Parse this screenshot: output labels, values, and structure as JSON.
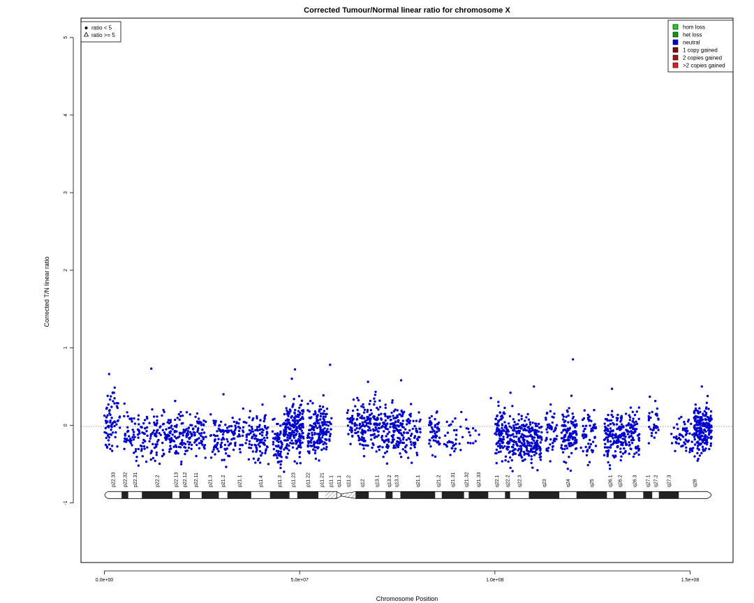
{
  "chart_data": {
    "type": "scatter",
    "title": "Corrected Tumour/Normal linear ratio for chromosome  X",
    "xlabel": "Chromosome Position",
    "ylabel": "Corrected T/N linear ratio",
    "xlim": [
      -6000000,
      161000000
    ],
    "ylim": [
      -1.77,
      5.25
    ],
    "x_ticks": [
      0,
      50000000,
      100000000,
      150000000
    ],
    "x_tick_labels": [
      "0.0e+00",
      "5.0e+07",
      "1.0e+08",
      "1.5e+08"
    ],
    "y_ticks": [
      -1,
      0,
      1,
      2,
      3,
      4,
      5
    ],
    "y_tick_labels": [
      "-1",
      "0",
      "1",
      "2",
      "3",
      "4",
      "5"
    ],
    "reference_line_y": 0,
    "point_color": "#0000cc",
    "shape_legend": {
      "position": "top-left",
      "entries": [
        {
          "symbol": "dot",
          "label": "ratio < 5"
        },
        {
          "symbol": "triangle",
          "label": "ratio >= 5"
        }
      ]
    },
    "state_legend": {
      "position": "top-right",
      "entries": [
        {
          "label": "hom loss",
          "color": "#22cc22"
        },
        {
          "label": "het loss",
          "color": "#119911"
        },
        {
          "label": "neutral",
          "color": "#0000cc"
        },
        {
          "label": "1 copy gained",
          "color": "#771111"
        },
        {
          "label": "2 copies gained",
          "color": "#aa1111"
        },
        {
          "label": ">2 copies gained",
          "color": "#dd2222"
        }
      ]
    },
    "series": [
      {
        "marker": "dot",
        "segments": [
          {
            "start": 0,
            "end": 4000000,
            "y_center": 0.05,
            "spread": 0.17,
            "n": 70
          },
          {
            "start": 5000000,
            "end": 11000000,
            "y_center": -0.12,
            "spread": 0.15,
            "n": 80
          },
          {
            "start": 11500000,
            "end": 22000000,
            "y_center": -0.12,
            "spread": 0.16,
            "n": 170
          },
          {
            "start": 22000000,
            "end": 26000000,
            "y_center": -0.12,
            "spread": 0.14,
            "n": 60
          },
          {
            "start": 27000000,
            "end": 32000000,
            "y_center": -0.17,
            "spread": 0.14,
            "n": 70
          },
          {
            "start": 32000000,
            "end": 38000000,
            "y_center": -0.1,
            "spread": 0.15,
            "n": 70
          },
          {
            "start": 38000000,
            "end": 42000000,
            "y_center": -0.2,
            "spread": 0.16,
            "n": 80
          },
          {
            "start": 43000000,
            "end": 46000000,
            "y_center": -0.22,
            "spread": 0.15,
            "n": 60
          },
          {
            "start": 46000000,
            "end": 51000000,
            "y_center": -0.05,
            "spread": 0.17,
            "n": 200
          },
          {
            "start": 52000000,
            "end": 57000000,
            "y_center": -0.05,
            "spread": 0.16,
            "n": 160
          },
          {
            "start": 57000000,
            "end": 58200000,
            "y_center": 0.0,
            "spread": 0.1,
            "n": 15
          },
          {
            "start": 62000000,
            "end": 65000000,
            "y_center": 0.02,
            "spread": 0.14,
            "n": 40
          },
          {
            "start": 65000000,
            "end": 72000000,
            "y_center": -0.02,
            "spread": 0.16,
            "n": 160
          },
          {
            "start": 72000000,
            "end": 77000000,
            "y_center": -0.08,
            "spread": 0.16,
            "n": 130
          },
          {
            "start": 77000000,
            "end": 81000000,
            "y_center": -0.1,
            "spread": 0.15,
            "n": 60
          },
          {
            "start": 83000000,
            "end": 86000000,
            "y_center": -0.12,
            "spread": 0.14,
            "n": 50
          },
          {
            "start": 87000000,
            "end": 90000000,
            "y_center": -0.15,
            "spread": 0.12,
            "n": 25
          },
          {
            "start": 90000000,
            "end": 96000000,
            "y_center": -0.12,
            "spread": 0.12,
            "n": 20
          },
          {
            "start": 100000000,
            "end": 103000000,
            "y_center": -0.1,
            "spread": 0.16,
            "n": 90
          },
          {
            "start": 103000000,
            "end": 107000000,
            "y_center": -0.18,
            "spread": 0.17,
            "n": 110
          },
          {
            "start": 107000000,
            "end": 112000000,
            "y_center": -0.18,
            "spread": 0.16,
            "n": 150
          },
          {
            "start": 113000000,
            "end": 116000000,
            "y_center": -0.12,
            "spread": 0.15,
            "n": 50
          },
          {
            "start": 117000000,
            "end": 121000000,
            "y_center": -0.1,
            "spread": 0.16,
            "n": 110
          },
          {
            "start": 122000000,
            "end": 126000000,
            "y_center": -0.1,
            "spread": 0.15,
            "n": 60
          },
          {
            "start": 128000000,
            "end": 133000000,
            "y_center": -0.15,
            "spread": 0.16,
            "n": 140
          },
          {
            "start": 133000000,
            "end": 137000000,
            "y_center": -0.1,
            "spread": 0.15,
            "n": 90
          },
          {
            "start": 139000000,
            "end": 142000000,
            "y_center": 0.0,
            "spread": 0.14,
            "n": 35
          },
          {
            "start": 145000000,
            "end": 151000000,
            "y_center": -0.15,
            "spread": 0.13,
            "n": 60
          },
          {
            "start": 151000000,
            "end": 155500000,
            "y_center": -0.05,
            "spread": 0.17,
            "n": 200
          }
        ],
        "outliers": [
          {
            "x": 1200000,
            "y": 0.66
          },
          {
            "x": 12000000,
            "y": 0.73
          },
          {
            "x": 48000000,
            "y": 0.6
          },
          {
            "x": 48800000,
            "y": 0.72
          },
          {
            "x": 57800000,
            "y": 0.78
          },
          {
            "x": 67500000,
            "y": 0.56
          },
          {
            "x": 76000000,
            "y": 0.58
          },
          {
            "x": 99000000,
            "y": 0.35
          },
          {
            "x": 104000000,
            "y": 0.42
          },
          {
            "x": 110000000,
            "y": 0.5
          },
          {
            "x": 120000000,
            "y": 0.85
          },
          {
            "x": 130000000,
            "y": 0.47
          },
          {
            "x": 42000000,
            "y": -0.5
          },
          {
            "x": 46000000,
            "y": -0.6
          },
          {
            "x": 104000000,
            "y": -0.55
          },
          {
            "x": 153000000,
            "y": 0.5
          },
          {
            "x": 30500000,
            "y": 0.4
          }
        ]
      }
    ],
    "ideogram": {
      "y": -0.9,
      "bands": [
        {
          "name": "p22.33",
          "start": 0,
          "end": 4400000,
          "stain": "gneg"
        },
        {
          "name": "p22.32",
          "start": 4400000,
          "end": 6100000,
          "stain": "gpos"
        },
        {
          "name": "p22.31",
          "start": 6100000,
          "end": 9600000,
          "stain": "gneg"
        },
        {
          "name": "p22.2",
          "start": 9600000,
          "end": 17400000,
          "stain": "gpos"
        },
        {
          "name": "p22.13",
          "start": 17400000,
          "end": 19200000,
          "stain": "gneg"
        },
        {
          "name": "p22.12",
          "start": 19200000,
          "end": 21900000,
          "stain": "gpos"
        },
        {
          "name": "p22.11",
          "start": 21900000,
          "end": 24900000,
          "stain": "gneg"
        },
        {
          "name": "p21.3",
          "start": 24900000,
          "end": 29300000,
          "stain": "gpos"
        },
        {
          "name": "p21.2",
          "start": 29300000,
          "end": 31500000,
          "stain": "gneg"
        },
        {
          "name": "p21.1",
          "start": 31500000,
          "end": 37600000,
          "stain": "gpos"
        },
        {
          "name": "p11.4",
          "start": 37600000,
          "end": 42400000,
          "stain": "gneg"
        },
        {
          "name": "p11.3",
          "start": 42400000,
          "end": 47400000,
          "stain": "gpos"
        },
        {
          "name": "p11.23",
          "start": 47400000,
          "end": 49400000,
          "stain": "gneg"
        },
        {
          "name": "p11.22",
          "start": 49400000,
          "end": 54800000,
          "stain": "gpos"
        },
        {
          "name": "p11.21",
          "start": 54800000,
          "end": 56600000,
          "stain": "gneg"
        },
        {
          "name": "p11.1",
          "start": 56600000,
          "end": 59500000,
          "stain": "stalk"
        },
        {
          "name": "q11.1",
          "start": 59500000,
          "end": 60600000,
          "stain": "acen_p"
        },
        {
          "name": "q11.2",
          "start": 60600000,
          "end": 64400000,
          "stain": "acen_q"
        },
        {
          "name": "q12",
          "start": 64400000,
          "end": 67700000,
          "stain": "gpos"
        },
        {
          "name": "q13.1",
          "start": 67700000,
          "end": 72000000,
          "stain": "gneg"
        },
        {
          "name": "q13.2",
          "start": 72000000,
          "end": 73800000,
          "stain": "gpos"
        },
        {
          "name": "q13.3",
          "start": 73800000,
          "end": 75800000,
          "stain": "gneg"
        },
        {
          "name": "q21.1",
          "start": 75800000,
          "end": 84700000,
          "stain": "gpos"
        },
        {
          "name": "q21.2",
          "start": 84700000,
          "end": 86400000,
          "stain": "gneg"
        },
        {
          "name": "q21.31",
          "start": 86400000,
          "end": 92100000,
          "stain": "gpos"
        },
        {
          "name": "q21.32",
          "start": 92100000,
          "end": 93300000,
          "stain": "gneg"
        },
        {
          "name": "q21.33",
          "start": 93300000,
          "end": 98300000,
          "stain": "gpos"
        },
        {
          "name": "q22.1",
          "start": 98300000,
          "end": 102600000,
          "stain": "gneg"
        },
        {
          "name": "q22.2",
          "start": 102600000,
          "end": 103900000,
          "stain": "gpos"
        },
        {
          "name": "q22.3",
          "start": 103900000,
          "end": 108700000,
          "stain": "gneg"
        },
        {
          "name": "q23",
          "start": 108700000,
          "end": 116500000,
          "stain": "gpos"
        },
        {
          "name": "q24",
          "start": 116500000,
          "end": 120900000,
          "stain": "gneg"
        },
        {
          "name": "q25",
          "start": 120900000,
          "end": 128700000,
          "stain": "gpos"
        },
        {
          "name": "q26.1",
          "start": 128700000,
          "end": 130400000,
          "stain": "gneg"
        },
        {
          "name": "q26.2",
          "start": 130400000,
          "end": 133600000,
          "stain": "gpos"
        },
        {
          "name": "q26.3",
          "start": 133600000,
          "end": 138000000,
          "stain": "gneg"
        },
        {
          "name": "q27.1",
          "start": 138000000,
          "end": 140300000,
          "stain": "gpos"
        },
        {
          "name": "q27.2",
          "start": 140300000,
          "end": 142000000,
          "stain": "gneg"
        },
        {
          "name": "q27.3",
          "start": 142000000,
          "end": 147100000,
          "stain": "gpos"
        },
        {
          "name": "q28",
          "start": 147100000,
          "end": 155300000,
          "stain": "gneg"
        }
      ]
    }
  }
}
